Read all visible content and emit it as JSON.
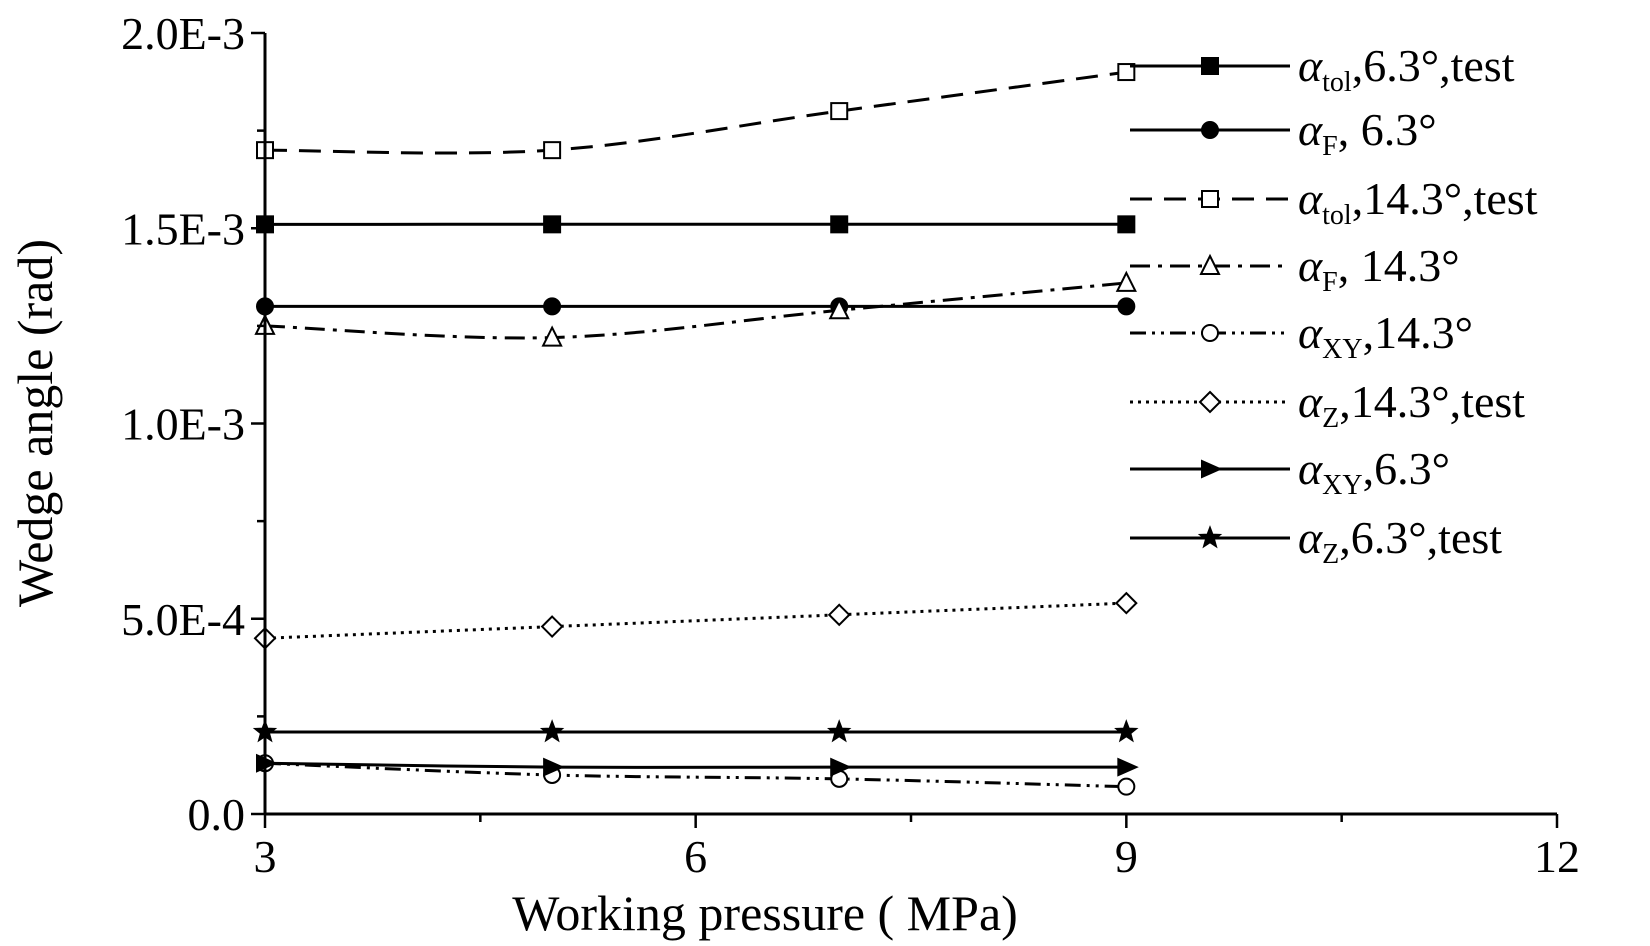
{
  "chart_data": {
    "type": "line",
    "xlabel": "Working pressure ( MPa)",
    "ylabel": "Wedge angle (rad)",
    "xlim": [
      3,
      12
    ],
    "ylim": [
      0,
      0.002
    ],
    "xticks": [
      3,
      6,
      9,
      12
    ],
    "xtick_labels": [
      "3",
      "6",
      "9",
      "12"
    ],
    "yticks": [
      0,
      0.0005,
      0.001,
      0.0015,
      0.002
    ],
    "ytick_labels": [
      "0.0",
      "5.0E-4",
      "1.0E-3",
      "1.5E-3",
      "2.0E-3"
    ],
    "grid": false,
    "legend_position": "top-right",
    "x": [
      3,
      5,
      7,
      9
    ],
    "series": [
      {
        "name": "α_tol,6.3°,test",
        "symbol": "α",
        "sub": "tol",
        "suffix": ",6.3°,test",
        "marker": "square-filled",
        "dash": "solid",
        "color": "#000000",
        "values": [
          0.00151,
          0.00151,
          0.00151,
          0.00151
        ]
      },
      {
        "name": "α_F, 6.3°",
        "symbol": "α",
        "sub": "F",
        "suffix": ", 6.3°",
        "marker": "circle-filled",
        "dash": "solid",
        "color": "#000000",
        "values": [
          0.0013,
          0.0013,
          0.0013,
          0.0013
        ]
      },
      {
        "name": "α_tol,14.3°,test",
        "symbol": "α",
        "sub": "tol",
        "suffix": ",14.3°,test",
        "marker": "square-open",
        "dash": "dash",
        "color": "#000000",
        "values": [
          0.0017,
          0.0017,
          0.0018,
          0.0019
        ]
      },
      {
        "name": "α_F, 14.3°",
        "symbol": "α",
        "sub": "F",
        "suffix": ", 14.3°",
        "marker": "triangle-open",
        "dash": "dashdot",
        "color": "#000000",
        "values": [
          0.00125,
          0.00122,
          0.00129,
          0.00136
        ]
      },
      {
        "name": "α_XY,14.3°",
        "symbol": "α",
        "sub": "XY",
        "suffix": ",14.3°",
        "marker": "circle-open",
        "dash": "dashdotdot",
        "color": "#000000",
        "values": [
          0.00013,
          0.0001,
          9e-05,
          7e-05
        ]
      },
      {
        "name": "α_Z,14.3°,test",
        "symbol": "α",
        "sub": "Z",
        "suffix": ",14.3°,test",
        "marker": "diamond-open",
        "dash": "dot",
        "color": "#000000",
        "values": [
          0.00045,
          0.00048,
          0.00051,
          0.00054
        ]
      },
      {
        "name": "α_XY,6.3°",
        "symbol": "α",
        "sub": "XY",
        "suffix": ",6.3°",
        "marker": "triangle-right-filled",
        "dash": "solid",
        "color": "#000000",
        "values": [
          0.00013,
          0.00012,
          0.00012,
          0.00012
        ]
      },
      {
        "name": "α_Z,6.3°,test",
        "symbol": "α",
        "sub": "Z",
        "suffix": ",6.3°,test",
        "marker": "star-filled",
        "dash": "solid",
        "color": "#000000",
        "values": [
          0.00021,
          0.00021,
          0.00021,
          0.00021
        ]
      }
    ]
  }
}
